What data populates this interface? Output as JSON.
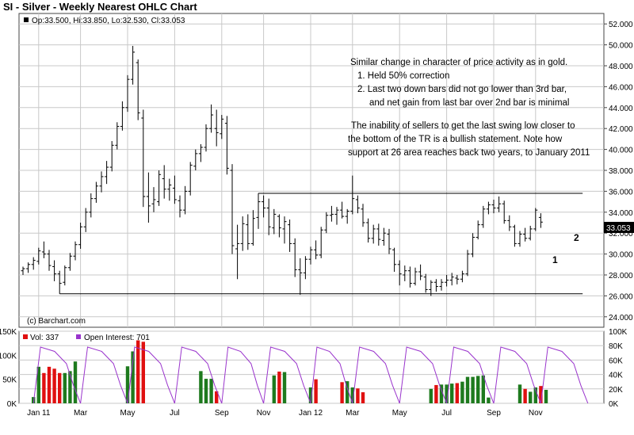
{
  "header": {
    "title": "SI - Silver - Weekly Nearest OHLC Chart",
    "ohlc_label": "Op:33.500, Hi:33.850, Lo:32.530, Cl:33.053",
    "credit": "(c) Barchart.com",
    "last_price_label": "33.053"
  },
  "legend": {
    "volume": "Vol: 337",
    "open_interest": "Open Interest: 701"
  },
  "annotations": {
    "lines": [
      "Similar change in character of price activity as in gold.",
      "1. Held 50% correction",
      "2. Last two down bars did not go lower than 3rd bar,",
      "and net gain from last bar over 2nd bar is minimal",
      "The inability of sellers to get the last swing low closer to",
      "the bottom of the TR is a bullish statement.  Note how",
      "support at 26 area reaches back two years, to January 2011"
    ],
    "marker_1": "1",
    "marker_2": "2"
  },
  "colors": {
    "bar": "#000000",
    "grid": "#c8c8c8",
    "volume_up": "#1e7a1e",
    "volume_down": "#e01010",
    "open_interest": "#9933cc",
    "last_price_bg": "#000000"
  },
  "chart_data": {
    "type": "ohlc",
    "title": "SI - Silver - Weekly Nearest OHLC Chart",
    "price_axis": {
      "ticks": [
        24,
        26,
        28,
        30,
        32,
        34,
        36,
        38,
        40,
        42,
        44,
        46,
        48,
        50,
        52
      ],
      "tick_labels": [
        "24.000",
        "26.000",
        "28.000",
        "30.000",
        "32.000",
        "34.000",
        "36.000",
        "38.000",
        "40.000",
        "42.000",
        "44.000",
        "46.000",
        "48.000",
        "50.000",
        "52.000"
      ],
      "ylim": [
        23,
        53
      ]
    },
    "volume_axis": {
      "ticks": [
        0,
        50000,
        100000,
        150000
      ],
      "tick_labels": [
        "0K",
        "50K",
        "100K",
        "150K"
      ],
      "ylim": [
        0,
        150000
      ]
    },
    "oi_axis": {
      "ticks": [
        0,
        20000,
        40000,
        60000,
        80000,
        100000
      ],
      "tick_labels": [
        "0K",
        "20K",
        "40K",
        "60K",
        "80K",
        "100K"
      ],
      "ylim": [
        0,
        100000
      ]
    },
    "x_labels": [
      "Jan 11",
      "Mar",
      "May",
      "Jul",
      "Sep",
      "Nov",
      "Jan 12",
      "Mar",
      "May",
      "Jul",
      "Sep",
      "Nov"
    ],
    "x_label_weeks": [
      3,
      11,
      20,
      29,
      38,
      46,
      55,
      63,
      72,
      81,
      90,
      98
    ],
    "trading_range_lines": [
      {
        "label": "resistance",
        "price": 35.8,
        "start_week": 45,
        "end_week": 107
      },
      {
        "label": "support",
        "price": 26.2,
        "start_week": 7,
        "end_week": 107
      }
    ],
    "series": [
      {
        "name": "Price",
        "ohlc": [
          [
            28.4,
            28.8,
            28.0,
            28.6
          ],
          [
            28.6,
            29.2,
            28.2,
            29.0
          ],
          [
            29.0,
            29.7,
            28.5,
            29.4
          ],
          [
            29.3,
            30.6,
            29.0,
            30.3
          ],
          [
            30.2,
            31.2,
            29.6,
            30.0
          ],
          [
            30.0,
            30.4,
            28.4,
            28.9
          ],
          [
            28.8,
            29.4,
            27.4,
            28.1
          ],
          [
            28.1,
            28.4,
            26.2,
            27.2
          ],
          [
            27.3,
            28.9,
            27.0,
            28.7
          ],
          [
            28.7,
            30.1,
            28.4,
            29.8
          ],
          [
            29.8,
            31.2,
            29.4,
            30.9
          ],
          [
            30.9,
            33.0,
            30.5,
            32.6
          ],
          [
            32.6,
            34.4,
            32.1,
            34.0
          ],
          [
            34.0,
            35.8,
            33.5,
            35.3
          ],
          [
            35.3,
            36.9,
            34.9,
            36.5
          ],
          [
            36.5,
            37.9,
            35.9,
            37.4
          ],
          [
            37.4,
            38.9,
            36.7,
            38.3
          ],
          [
            38.3,
            40.8,
            37.9,
            40.4
          ],
          [
            40.4,
            42.6,
            40.0,
            42.2
          ],
          [
            42.2,
            44.6,
            41.8,
            44.0
          ],
          [
            44.0,
            47.1,
            43.6,
            46.7
          ],
          [
            46.7,
            49.9,
            46.2,
            49.3
          ],
          [
            48.3,
            48.6,
            42.8,
            43.5
          ],
          [
            43.0,
            43.8,
            34.5,
            35.5
          ],
          [
            35.5,
            37.8,
            33.0,
            34.6
          ],
          [
            34.8,
            36.4,
            34.0,
            35.2
          ],
          [
            35.0,
            38.0,
            34.6,
            37.6
          ],
          [
            37.2,
            38.5,
            35.3,
            36.2
          ],
          [
            36.2,
            37.2,
            35.1,
            36.6
          ],
          [
            36.3,
            37.5,
            34.8,
            35.2
          ],
          [
            35.1,
            35.6,
            33.5,
            34.2
          ],
          [
            34.2,
            36.5,
            33.8,
            36.0
          ],
          [
            36.0,
            38.8,
            35.6,
            38.5
          ],
          [
            38.4,
            40.0,
            38.0,
            39.6
          ],
          [
            39.6,
            40.5,
            38.8,
            40.2
          ],
          [
            40.2,
            42.4,
            39.8,
            42.0
          ],
          [
            42.0,
            44.3,
            41.6,
            43.3
          ],
          [
            42.0,
            43.8,
            40.3,
            41.6
          ],
          [
            41.5,
            43.3,
            41.0,
            42.9
          ],
          [
            42.5,
            43.2,
            37.6,
            38.2
          ],
          [
            38.0,
            38.6,
            30.0,
            30.8
          ],
          [
            30.5,
            32.8,
            27.6,
            31.0
          ],
          [
            31.0,
            33.6,
            30.3,
            32.9
          ],
          [
            32.8,
            33.8,
            30.4,
            31.0
          ],
          [
            31.0,
            34.2,
            30.8,
            33.4
          ],
          [
            33.5,
            35.8,
            32.4,
            35.0
          ],
          [
            35.0,
            35.6,
            33.5,
            34.4
          ],
          [
            34.4,
            35.3,
            31.8,
            32.6
          ],
          [
            32.5,
            34.3,
            31.9,
            33.8
          ],
          [
            33.6,
            33.8,
            31.6,
            32.5
          ],
          [
            32.4,
            33.6,
            31.0,
            33.1
          ],
          [
            32.8,
            33.3,
            30.2,
            31.0
          ],
          [
            31.0,
            31.5,
            27.8,
            28.5
          ],
          [
            28.5,
            29.6,
            26.1,
            28.2
          ],
          [
            28.2,
            29.8,
            27.6,
            29.5
          ],
          [
            29.5,
            30.7,
            29.0,
            30.4
          ],
          [
            30.4,
            31.3,
            29.5,
            29.9
          ],
          [
            29.9,
            32.6,
            29.6,
            32.3
          ],
          [
            32.3,
            34.0,
            32.0,
            33.7
          ],
          [
            33.7,
            34.6,
            33.1,
            33.8
          ],
          [
            33.8,
            34.5,
            32.8,
            34.2
          ],
          [
            34.2,
            35.0,
            33.4,
            33.6
          ],
          [
            33.6,
            34.3,
            32.9,
            34.1
          ],
          [
            34.1,
            37.5,
            33.8,
            35.3
          ],
          [
            35.2,
            35.6,
            33.9,
            34.4
          ],
          [
            34.3,
            34.8,
            32.6,
            33.0
          ],
          [
            33.0,
            33.4,
            31.1,
            31.5
          ],
          [
            31.5,
            32.8,
            31.0,
            32.4
          ],
          [
            32.4,
            32.9,
            30.8,
            31.4
          ],
          [
            31.3,
            32.5,
            30.8,
            32.0
          ],
          [
            31.9,
            32.4,
            30.0,
            30.5
          ],
          [
            30.4,
            30.6,
            28.3,
            29.0
          ],
          [
            29.0,
            29.4,
            27.0,
            28.1
          ],
          [
            28.0,
            28.9,
            27.4,
            28.4
          ],
          [
            28.4,
            28.8,
            26.8,
            27.2
          ],
          [
            27.2,
            28.7,
            27.0,
            28.3
          ],
          [
            28.3,
            29.0,
            27.5,
            27.9
          ],
          [
            27.8,
            28.1,
            26.3,
            26.6
          ],
          [
            26.6,
            27.5,
            26.0,
            27.3
          ],
          [
            27.3,
            27.6,
            26.4,
            26.9
          ],
          [
            26.9,
            27.6,
            26.5,
            27.3
          ],
          [
            27.3,
            28.0,
            26.9,
            27.5
          ],
          [
            27.5,
            28.2,
            27.0,
            27.8
          ],
          [
            27.7,
            28.0,
            27.1,
            27.6
          ],
          [
            27.6,
            28.4,
            27.3,
            28.1
          ],
          [
            28.1,
            30.4,
            27.9,
            30.0
          ],
          [
            30.0,
            32.0,
            29.7,
            31.6
          ],
          [
            31.6,
            33.2,
            31.4,
            32.8
          ],
          [
            32.8,
            34.6,
            32.5,
            34.3
          ],
          [
            34.3,
            35.0,
            33.8,
            34.7
          ],
          [
            34.7,
            35.2,
            33.9,
            34.4
          ],
          [
            34.4,
            35.5,
            34.0,
            34.8
          ],
          [
            34.8,
            35.1,
            32.9,
            33.2
          ],
          [
            33.2,
            33.7,
            32.2,
            32.6
          ],
          [
            32.6,
            32.8,
            30.7,
            31.0
          ],
          [
            31.0,
            32.2,
            30.7,
            31.9
          ],
          [
            31.9,
            32.5,
            31.2,
            31.5
          ],
          [
            31.5,
            32.7,
            31.3,
            32.4
          ],
          [
            32.4,
            34.4,
            32.2,
            34.2
          ],
          [
            33.5,
            33.9,
            32.5,
            33.053
          ]
        ]
      },
      {
        "name": "Volume",
        "values": [
          0,
          0,
          13,
          76,
          63,
          76,
          72,
          63,
          63,
          67,
          87,
          0,
          0,
          0,
          0,
          0,
          0,
          0,
          0,
          0,
          77,
          108,
          131,
          128,
          0,
          0,
          0,
          0,
          0,
          0,
          0,
          0,
          0,
          0,
          67,
          51,
          51,
          25,
          0,
          0,
          0,
          0,
          0,
          0,
          0,
          0,
          0,
          0,
          58,
          66,
          65,
          0,
          0,
          0,
          0,
          33,
          50,
          0,
          0,
          0,
          0,
          44,
          46,
          33,
          31,
          23,
          0,
          0,
          0,
          0,
          0,
          0,
          0,
          0,
          0,
          0,
          0,
          0,
          30,
          38,
          39,
          39,
          41,
          42,
          45,
          55,
          55,
          57,
          58,
          12,
          0,
          0,
          0,
          0,
          0,
          39,
          30,
          24,
          33,
          36,
          28,
          0,
          0,
          0,
          0,
          0,
          0,
          0
        ]
      },
      {
        "name": "Open Interest",
        "type": "line"
      }
    ]
  }
}
